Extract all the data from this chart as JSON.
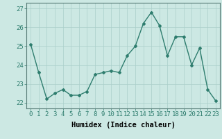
{
  "x": [
    0,
    1,
    2,
    3,
    4,
    5,
    6,
    7,
    8,
    9,
    10,
    11,
    12,
    13,
    14,
    15,
    16,
    17,
    18,
    19,
    20,
    21,
    22,
    23
  ],
  "y": [
    25.1,
    23.6,
    22.2,
    22.5,
    22.7,
    22.4,
    22.4,
    22.6,
    23.5,
    23.6,
    23.7,
    23.6,
    24.5,
    25.0,
    26.2,
    26.8,
    26.1,
    24.5,
    25.5,
    25.5,
    24.0,
    24.9,
    22.7,
    22.1
  ],
  "line_color": "#2e7d6e",
  "marker": "D",
  "marker_size": 2.0,
  "bg_color": "#cce8e3",
  "grid_color": "#aacfca",
  "xlabel": "Humidex (Indice chaleur)",
  "ylim": [
    21.7,
    27.3
  ],
  "yticks": [
    22,
    23,
    24,
    25,
    26,
    27
  ],
  "xticks": [
    0,
    1,
    2,
    3,
    4,
    5,
    6,
    7,
    8,
    9,
    10,
    11,
    12,
    13,
    14,
    15,
    16,
    17,
    18,
    19,
    20,
    21,
    22,
    23
  ],
  "linewidth": 1.0,
  "tick_fontsize": 6.5,
  "xlabel_fontsize": 7.5
}
